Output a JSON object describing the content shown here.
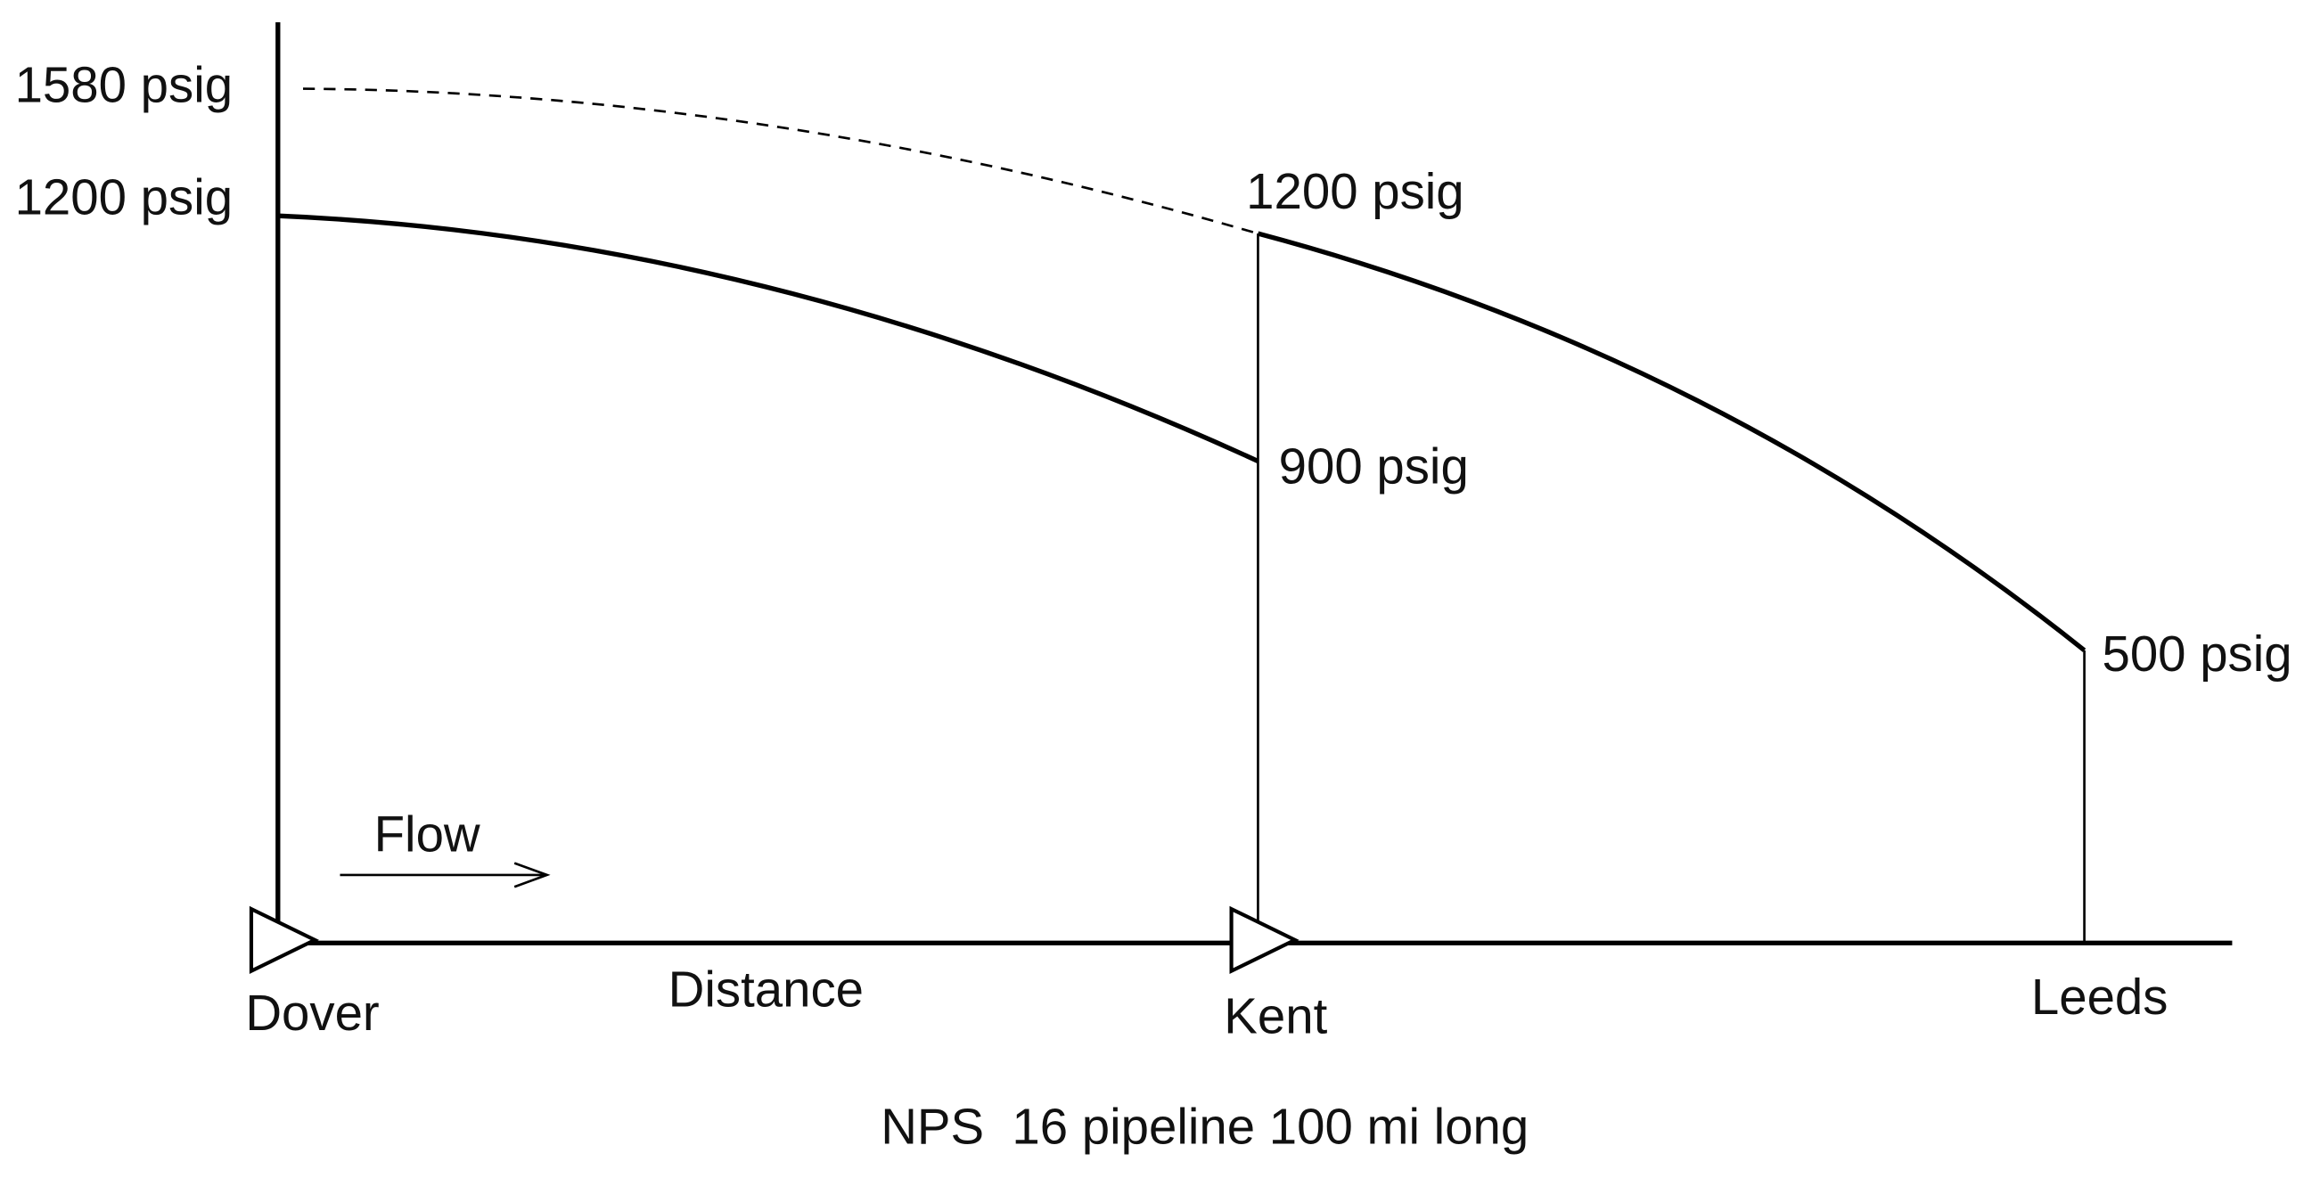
{
  "y_labels": [
    "1580 psig",
    "1200 psig"
  ],
  "point_labels": [
    "1200 psig",
    "900 psig",
    "500 psig"
  ],
  "flow_label": "Flow",
  "stations": [
    "Dover",
    "Kent",
    "Leeds"
  ],
  "axis_label": "Distance",
  "caption": "NPS  16 pipeline 100 mi long"
}
